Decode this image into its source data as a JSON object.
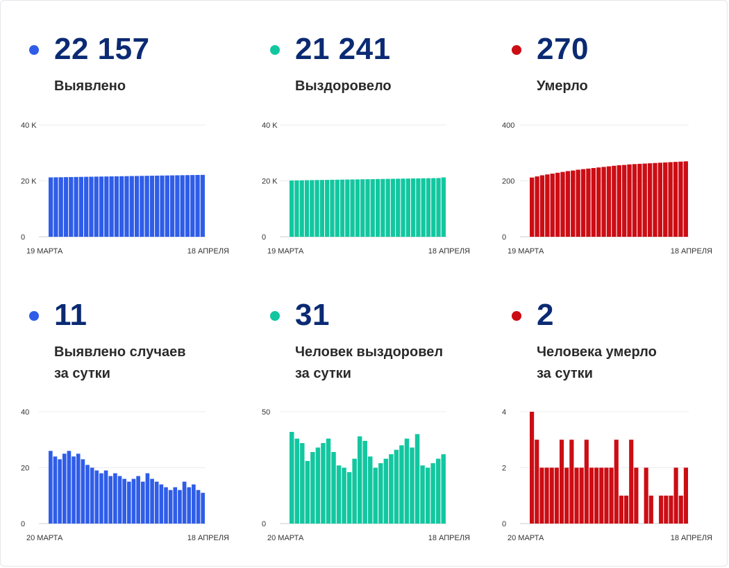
{
  "colors": {
    "blue": "#2f5de8",
    "teal": "#12c7a0",
    "red": "#cc0d14",
    "number": "#0b2a73"
  },
  "panels": [
    {
      "value": "22 157",
      "label": [
        "Выявлено"
      ],
      "color": "blue",
      "chart_data": {
        "type": "bar",
        "ylim": [
          0,
          40000
        ],
        "y_ticks": [
          "0",
          "20 K",
          "40 K"
        ],
        "y_tick_values": [
          0,
          20000,
          40000
        ],
        "x_start": "19 МАРТА",
        "x_end": "18 АПРЕЛЯ",
        "values": [
          21250,
          21280,
          21310,
          21340,
          21370,
          21400,
          21430,
          21460,
          21490,
          21520,
          21550,
          21580,
          21610,
          21640,
          21670,
          21700,
          21730,
          21760,
          21790,
          21820,
          21850,
          21880,
          21910,
          21940,
          21970,
          22000,
          22030,
          22060,
          22090,
          22120,
          22157
        ]
      }
    },
    {
      "value": "21 241",
      "label": [
        "Выздоровело"
      ],
      "color": "teal",
      "chart_data": {
        "type": "bar",
        "ylim": [
          0,
          40000
        ],
        "y_ticks": [
          "0",
          "20 K",
          "40 K"
        ],
        "y_tick_values": [
          0,
          20000,
          40000
        ],
        "x_start": "19 МАРТА",
        "x_end": "18 АПРЕЛЯ",
        "values": [
          20150,
          20180,
          20210,
          20240,
          20270,
          20300,
          20330,
          20360,
          20390,
          20420,
          20450,
          20480,
          20510,
          20540,
          20570,
          20600,
          20630,
          20660,
          20690,
          20720,
          20750,
          20780,
          20810,
          20840,
          20870,
          20900,
          20930,
          20960,
          20990,
          21020,
          21241
        ]
      }
    },
    {
      "value": "270",
      "label": [
        "Умерло"
      ],
      "color": "red",
      "chart_data": {
        "type": "bar",
        "ylim": [
          0,
          400
        ],
        "y_ticks": [
          "0",
          "200",
          "400"
        ],
        "y_tick_values": [
          0,
          200,
          400
        ],
        "x_start": "19 МАРТА",
        "x_end": "18 АПРЕЛЯ",
        "values": [
          212,
          216,
          220,
          223,
          226,
          229,
          232,
          235,
          237,
          240,
          242,
          244,
          246,
          248,
          250,
          252,
          254,
          256,
          257,
          259,
          260,
          261,
          262,
          263,
          264,
          265,
          266,
          267,
          268,
          269,
          270
        ]
      }
    },
    {
      "value": "11",
      "label": [
        "Выявлено случаев",
        "за сутки"
      ],
      "color": "blue",
      "chart_data": {
        "type": "bar",
        "ylim": [
          0,
          40
        ],
        "y_ticks": [
          "0",
          "20",
          "40"
        ],
        "y_tick_values": [
          0,
          20,
          40
        ],
        "x_start": "20 МАРТА",
        "x_end": "18 АПРЕЛЯ",
        "values": [
          26,
          24,
          23,
          25,
          26,
          24,
          25,
          23,
          21,
          20,
          19,
          18,
          19,
          17,
          18,
          17,
          16,
          15,
          16,
          17,
          15,
          18,
          16,
          15,
          14,
          13,
          12,
          13,
          12,
          15,
          13,
          14,
          12,
          11
        ]
      }
    },
    {
      "value": "31",
      "label": [
        "Человек выздоровел",
        "за сутки"
      ],
      "color": "teal",
      "chart_data": {
        "type": "bar",
        "ylim": [
          0,
          50
        ],
        "y_ticks": [
          "0",
          "50"
        ],
        "y_tick_values": [
          0,
          50
        ],
        "x_start": "20 МАРТА",
        "x_end": "18 АПРЕЛЯ",
        "values": [
          41,
          38,
          36,
          28,
          32,
          34,
          36,
          38,
          32,
          26,
          25,
          23,
          29,
          39,
          37,
          30,
          25,
          27,
          29,
          31,
          33,
          35,
          38,
          34,
          40,
          26,
          25,
          27,
          29,
          31
        ]
      }
    },
    {
      "value": "2",
      "label": [
        "Человека умерло",
        "за сутки"
      ],
      "color": "red",
      "chart_data": {
        "type": "bar",
        "ylim": [
          0,
          4
        ],
        "y_ticks": [
          "0",
          "2",
          "4"
        ],
        "y_tick_values": [
          0,
          2,
          4
        ],
        "x_start": "20 МАРТА",
        "x_end": "18 АПРЕЛЯ",
        "values": [
          4,
          3,
          2,
          2,
          2,
          2,
          3,
          2,
          3,
          2,
          2,
          3,
          2,
          2,
          2,
          2,
          2,
          3,
          1,
          1,
          3,
          2,
          0,
          2,
          1,
          0,
          1,
          1,
          1,
          2,
          1,
          2
        ]
      }
    }
  ]
}
